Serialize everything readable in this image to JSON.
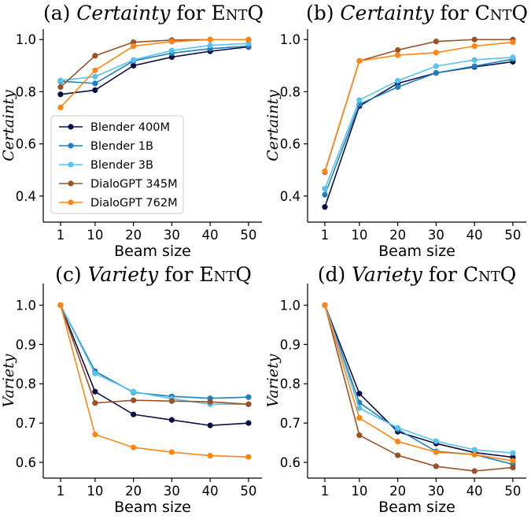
{
  "chart_data": [
    {
      "type": "line",
      "title": "(a) Certainty for EntQ",
      "title_parts": {
        "prefix": "(a) ",
        "metric": "Certainty",
        "mid": " for ",
        "dataset": "EntQ"
      },
      "xlabel": "Beam size",
      "ylabel": "Certainty",
      "x": [
        1,
        10,
        20,
        30,
        40,
        50
      ],
      "xlim": [
        -3.5,
        53.5
      ],
      "ylim": [
        0.3,
        1.04
      ],
      "yticks": [
        0.4,
        0.6,
        0.8,
        1.0
      ],
      "ytick_labels": [
        "0.4",
        "0.6",
        "0.8",
        "1.0"
      ],
      "grid": false,
      "legend": "center-left",
      "series": [
        {
          "name": "Blender 400M",
          "color": "#0c0f46",
          "values": [
            0.79,
            0.806,
            0.9,
            0.933,
            0.955,
            0.972
          ]
        },
        {
          "name": "Blender 1B",
          "color": "#1f7fbf",
          "values": [
            0.84,
            0.832,
            0.918,
            0.948,
            0.965,
            0.975
          ]
        },
        {
          "name": "Blender 3B",
          "color": "#56c2ef",
          "values": [
            0.843,
            0.858,
            0.922,
            0.958,
            0.978,
            0.985
          ]
        },
        {
          "name": "DialoGPT 345M",
          "color": "#9b5128",
          "values": [
            0.818,
            0.938,
            0.99,
            0.998,
            1.0,
            1.0
          ]
        },
        {
          "name": "DialoGPT 762M",
          "color": "#ff8611",
          "values": [
            0.74,
            0.882,
            0.975,
            0.992,
            1.0,
            1.0
          ]
        }
      ]
    },
    {
      "type": "line",
      "title": "(b) Certainty for CntQ",
      "title_parts": {
        "prefix": "(b) ",
        "metric": "Certainty",
        "mid": " for ",
        "dataset": "CntQ"
      },
      "xlabel": "Beam size",
      "ylabel": "Certainty",
      "x": [
        1,
        10,
        20,
        30,
        40,
        50
      ],
      "xlim": [
        -3.5,
        53.5
      ],
      "ylim": [
        0.3,
        1.04
      ],
      "yticks": [
        0.4,
        0.6,
        0.8,
        1.0
      ],
      "ytick_labels": [
        "0.4",
        "0.6",
        "0.8",
        "1.0"
      ],
      "grid": false,
      "series": [
        {
          "name": "Blender 400M",
          "color": "#0c0f46",
          "values": [
            0.358,
            0.745,
            0.832,
            0.872,
            0.895,
            0.915
          ]
        },
        {
          "name": "Blender 1B",
          "color": "#1f7fbf",
          "values": [
            0.405,
            0.752,
            0.818,
            0.872,
            0.898,
            0.925
          ]
        },
        {
          "name": "Blender 3B",
          "color": "#56c2ef",
          "values": [
            0.428,
            0.768,
            0.842,
            0.898,
            0.922,
            0.932
          ]
        },
        {
          "name": "DialoGPT 345M",
          "color": "#9b5128",
          "values": [
            0.492,
            0.918,
            0.96,
            0.993,
            1.0,
            1.0
          ]
        },
        {
          "name": "DialoGPT 762M",
          "color": "#ff8611",
          "values": [
            0.495,
            0.918,
            0.94,
            0.95,
            0.975,
            0.99
          ]
        }
      ]
    },
    {
      "type": "line",
      "title": "(c) Variety for EntQ",
      "title_parts": {
        "prefix": "(c) ",
        "metric": "Variety",
        "mid": " for ",
        "dataset": "EntQ"
      },
      "xlabel": "Beam size",
      "ylabel": "Variety",
      "x": [
        1,
        10,
        20,
        30,
        40,
        50
      ],
      "xlim": [
        -3.5,
        53.5
      ],
      "ylim": [
        0.56,
        1.055
      ],
      "yticks": [
        0.6,
        0.7,
        0.8,
        0.9,
        1.0
      ],
      "ytick_labels": [
        "0.6",
        "0.7",
        "0.8",
        "0.9",
        "1.0"
      ],
      "grid": false,
      "series": [
        {
          "name": "Blender 400M",
          "color": "#0c0f46",
          "values": [
            1.0,
            0.78,
            0.722,
            0.708,
            0.694,
            0.7
          ]
        },
        {
          "name": "Blender 1B",
          "color": "#1f7fbf",
          "values": [
            1.0,
            0.832,
            0.778,
            0.768,
            0.763,
            0.766
          ]
        },
        {
          "name": "Blender 3B",
          "color": "#56c2ef",
          "values": [
            1.0,
            0.826,
            0.78,
            0.762,
            0.748,
            0.748
          ]
        },
        {
          "name": "DialoGPT 345M",
          "color": "#9b5128",
          "values": [
            1.0,
            0.751,
            0.758,
            0.756,
            0.754,
            0.748
          ]
        },
        {
          "name": "DialoGPT 762M",
          "color": "#ff8611",
          "values": [
            1.0,
            0.671,
            0.638,
            0.626,
            0.617,
            0.614
          ]
        }
      ]
    },
    {
      "type": "line",
      "title": "(d) Variety for CntQ",
      "title_parts": {
        "prefix": "(d) ",
        "metric": "Variety",
        "mid": " for ",
        "dataset": "CntQ"
      },
      "xlabel": "Beam size",
      "ylabel": "Variety",
      "x": [
        1,
        10,
        20,
        30,
        40,
        50
      ],
      "xlim": [
        -3.5,
        53.5
      ],
      "ylim": [
        0.56,
        1.055
      ],
      "yticks": [
        0.6,
        0.7,
        0.8,
        0.9,
        1.0
      ],
      "ytick_labels": [
        "0.6",
        "0.7",
        "0.8",
        "0.9",
        "1.0"
      ],
      "grid": false,
      "series": [
        {
          "name": "Blender 400M",
          "color": "#0c0f46",
          "values": [
            1.0,
            0.775,
            0.678,
            0.648,
            0.625,
            0.613
          ]
        },
        {
          "name": "Blender 1B",
          "color": "#1f7fbf",
          "values": [
            1.0,
            0.752,
            0.684,
            0.628,
            0.62,
            0.595
          ]
        },
        {
          "name": "Blender 3B",
          "color": "#56c2ef",
          "values": [
            1.0,
            0.738,
            0.688,
            0.654,
            0.632,
            0.624
          ]
        },
        {
          "name": "DialoGPT 345M",
          "color": "#9b5128",
          "values": [
            1.0,
            0.669,
            0.618,
            0.59,
            0.578,
            0.587
          ]
        },
        {
          "name": "DialoGPT 762M",
          "color": "#ff8611",
          "values": [
            1.0,
            0.713,
            0.653,
            0.626,
            0.62,
            0.604
          ]
        }
      ]
    }
  ]
}
